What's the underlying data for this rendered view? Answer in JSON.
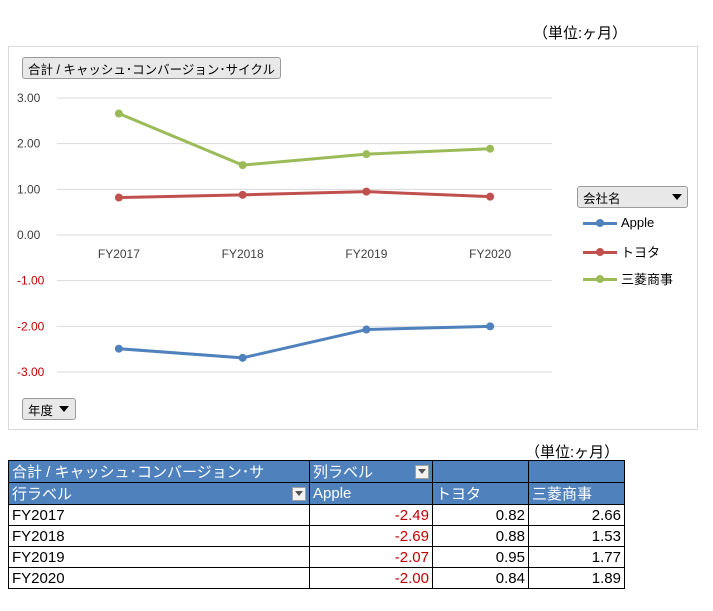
{
  "unit_label": "（単位:ヶ月）",
  "chart_data": {
    "type": "line",
    "categories": [
      "FY2017",
      "FY2018",
      "FY2019",
      "FY2020"
    ],
    "series": [
      {
        "name": "Apple",
        "values": [
          -2.49,
          -2.69,
          -2.07,
          -2.0
        ],
        "color": "#4f81bd"
      },
      {
        "name": "トヨタ",
        "values": [
          0.82,
          0.88,
          0.95,
          0.84
        ],
        "color": "#c0504d"
      },
      {
        "name": "三菱商事",
        "values": [
          2.66,
          1.53,
          1.77,
          1.89
        ],
        "color": "#9bbb59"
      }
    ],
    "ylim": [
      -3,
      3
    ],
    "yticks": [
      "3.00",
      "2.00",
      "1.00",
      "0.00",
      "-1.00",
      "-2.00",
      "-3.00"
    ],
    "ytick_values": [
      3,
      2,
      1,
      0,
      -1,
      -2,
      -3
    ],
    "negative_tick_color": "#c00000",
    "grid": true,
    "legend_position": "right",
    "value_field_label": "合計 / キャッシュ･コンバージョン･サイクル",
    "legend_field_label": "会社名",
    "axis_field_label": "年度"
  },
  "pivot": {
    "corner_label": "合計 / キャッシュ･コンバージョン･サ",
    "col_label": "列ラベル",
    "row_label": "行ラベル",
    "columns": [
      "Apple",
      "トヨタ",
      "三菱商事"
    ],
    "rows": [
      {
        "label": "FY2017",
        "values": [
          "-2.49",
          "0.82",
          "2.66"
        ]
      },
      {
        "label": "FY2018",
        "values": [
          "-2.69",
          "0.88",
          "1.53"
        ]
      },
      {
        "label": "FY2019",
        "values": [
          "-2.07",
          "0.95",
          "1.77"
        ]
      },
      {
        "label": "FY2020",
        "values": [
          "-2.00",
          "0.84",
          "1.89"
        ]
      }
    ]
  }
}
